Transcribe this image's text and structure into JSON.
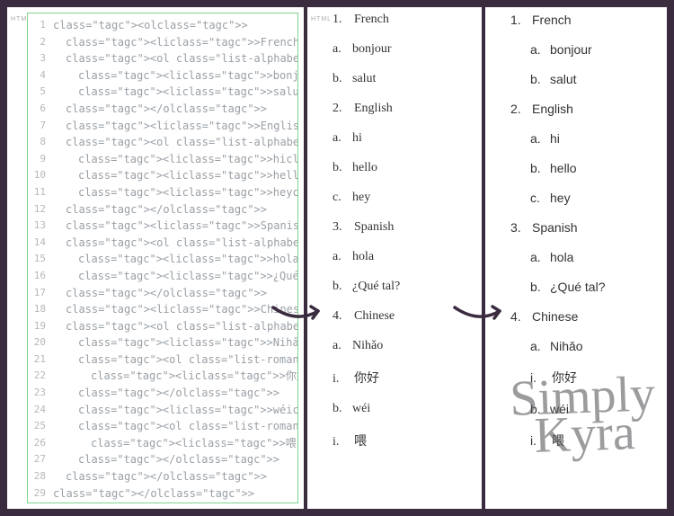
{
  "labels": {
    "html_tag": "HTML"
  },
  "colors": {
    "page_border": "#3a2b3f",
    "editor_border": "#7fd48f",
    "line_number": "#b8b8b8",
    "code_text": "#888888",
    "arrow": "#3a2b3f",
    "watermark": "rgba(90,90,95,0.6)"
  },
  "code": {
    "lines": [
      {
        "n": 1,
        "indent": 0,
        "html": "<ol>"
      },
      {
        "n": 2,
        "indent": 1,
        "html": "<li>French</li>"
      },
      {
        "n": 3,
        "indent": 1,
        "html": "<ol class=\"list-alphabet\">"
      },
      {
        "n": 4,
        "indent": 2,
        "html": "<li>bonjour</li>"
      },
      {
        "n": 5,
        "indent": 2,
        "html": "<li>salut</li>"
      },
      {
        "n": 6,
        "indent": 1,
        "html": "</ol>"
      },
      {
        "n": 7,
        "indent": 1,
        "html": "<li>English</li>"
      },
      {
        "n": 8,
        "indent": 1,
        "html": "<ol class=\"list-alphabet\">"
      },
      {
        "n": 9,
        "indent": 2,
        "html": "<li>hi</li>"
      },
      {
        "n": 10,
        "indent": 2,
        "html": "<li>hello</li>"
      },
      {
        "n": 11,
        "indent": 2,
        "html": "<li>hey</li>"
      },
      {
        "n": 12,
        "indent": 1,
        "html": "</ol>"
      },
      {
        "n": 13,
        "indent": 1,
        "html": "<li>Spanish</li>"
      },
      {
        "n": 14,
        "indent": 1,
        "html": "<ol class=\"list-alphabet\">"
      },
      {
        "n": 15,
        "indent": 2,
        "html": "<li>hola</li>"
      },
      {
        "n": 16,
        "indent": 2,
        "html": "<li>¿Qué tal?</li>"
      },
      {
        "n": 17,
        "indent": 1,
        "html": "</ol>"
      },
      {
        "n": 18,
        "indent": 1,
        "html": "<li>Chinese</li>"
      },
      {
        "n": 19,
        "indent": 1,
        "html": "<ol class=\"list-alphabet\">"
      },
      {
        "n": 20,
        "indent": 2,
        "html": "<li>Nihǎo</li>"
      },
      {
        "n": 21,
        "indent": 2,
        "html": "<ol class=\"list-roman\">"
      },
      {
        "n": 22,
        "indent": 3,
        "html": "<li>你好</li>"
      },
      {
        "n": 23,
        "indent": 2,
        "html": "</ol>"
      },
      {
        "n": 24,
        "indent": 2,
        "html": "<li>wéi</li>"
      },
      {
        "n": 25,
        "indent": 2,
        "html": "<ol class=\"list-roman\">"
      },
      {
        "n": 26,
        "indent": 3,
        "html": "<li>喂</li>"
      },
      {
        "n": 27,
        "indent": 2,
        "html": "</ol>"
      },
      {
        "n": 28,
        "indent": 1,
        "html": "</ol>"
      },
      {
        "n": 29,
        "indent": 0,
        "html": "</ol>"
      }
    ]
  },
  "list": [
    {
      "mk": "1.",
      "txt": "French",
      "sub": [
        {
          "mk": "a.",
          "txt": "bonjour"
        },
        {
          "mk": "b.",
          "txt": "salut"
        }
      ]
    },
    {
      "mk": "2.",
      "txt": "English",
      "sub": [
        {
          "mk": "a.",
          "txt": "hi"
        },
        {
          "mk": "b.",
          "txt": "hello"
        },
        {
          "mk": "c.",
          "txt": "hey"
        }
      ]
    },
    {
      "mk": "3.",
      "txt": "Spanish",
      "sub": [
        {
          "mk": "a.",
          "txt": "hola"
        },
        {
          "mk": "b.",
          "txt": "¿Qué tal?"
        }
      ]
    },
    {
      "mk": "4.",
      "txt": "Chinese",
      "sub": [
        {
          "mk": "a.",
          "txt": "Nihǎo",
          "sub2": [
            {
              "mk": "i.",
              "txt": "你好"
            }
          ]
        },
        {
          "mk": "b.",
          "txt": "wéi",
          "sub2": [
            {
              "mk": "i.",
              "txt": "喂"
            }
          ]
        }
      ]
    }
  ],
  "watermark": {
    "line1": "Simply",
    "line2": "Kyra"
  }
}
